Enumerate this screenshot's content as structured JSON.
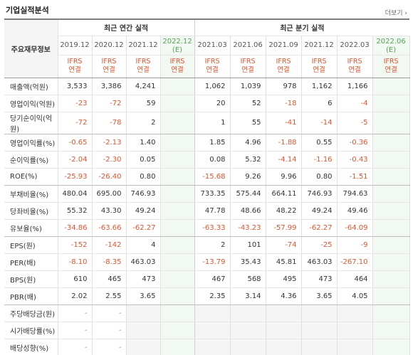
{
  "title": "기업실적분석",
  "more_label": "더보기",
  "annual_header": "최근 연간 실적",
  "quarter_header": "최근 분기 실적",
  "row_header": "주요재무정보",
  "ifrs_top": "IFRS",
  "ifrs_bottom": "연결",
  "annual_periods": [
    {
      "date": "2019.12",
      "est": ""
    },
    {
      "date": "2020.12",
      "est": ""
    },
    {
      "date": "2021.12",
      "est": ""
    },
    {
      "date": "2022.12",
      "est": "(E)"
    }
  ],
  "quarter_periods": [
    {
      "date": "2021.03",
      "est": ""
    },
    {
      "date": "2021.06",
      "est": ""
    },
    {
      "date": "2021.09",
      "est": ""
    },
    {
      "date": "2021.12",
      "est": ""
    },
    {
      "date": "2022.03",
      "est": ""
    },
    {
      "date": "2022.06",
      "est": "(E)"
    }
  ],
  "rows": [
    {
      "label": "매출액(억원)",
      "annual": [
        "3,533",
        "3,386",
        "4,241",
        ""
      ],
      "quarter": [
        "1,062",
        "1,039",
        "978",
        "1,162",
        "1,166",
        ""
      ]
    },
    {
      "label": "영업이익(억원)",
      "annual": [
        "-23",
        "-72",
        "59",
        ""
      ],
      "quarter": [
        "20",
        "52",
        "-18",
        "6",
        "-4",
        ""
      ]
    },
    {
      "label": "당기순이익(억원)",
      "annual": [
        "-72",
        "-78",
        "2",
        ""
      ],
      "quarter": [
        "1",
        "55",
        "-41",
        "-14",
        "-5",
        ""
      ]
    },
    {
      "label": "영업이익률(%)",
      "annual": [
        "-0.65",
        "-2.13",
        "1.40",
        ""
      ],
      "quarter": [
        "1.85",
        "4.96",
        "-1.88",
        "0.55",
        "-0.36",
        ""
      ]
    },
    {
      "label": "순이익률(%)",
      "annual": [
        "-2.04",
        "-2.30",
        "0.05",
        ""
      ],
      "quarter": [
        "0.08",
        "5.32",
        "-4.14",
        "-1.16",
        "-0.43",
        ""
      ]
    },
    {
      "label": "ROE(%)",
      "annual": [
        "-25.93",
        "-26.40",
        "0.80",
        ""
      ],
      "quarter": [
        "-15.68",
        "9.26",
        "9.96",
        "0.80",
        "-1.51",
        ""
      ]
    },
    {
      "label": "부채비율(%)",
      "annual": [
        "480.04",
        "695.00",
        "746.93",
        ""
      ],
      "quarter": [
        "733.35",
        "575.44",
        "664.11",
        "746.93",
        "794.63",
        ""
      ]
    },
    {
      "label": "당좌비율(%)",
      "annual": [
        "55.32",
        "43.30",
        "49.24",
        ""
      ],
      "quarter": [
        "47.78",
        "48.66",
        "48.22",
        "49.24",
        "49.46",
        ""
      ]
    },
    {
      "label": "유보율(%)",
      "annual": [
        "-34.86",
        "-63.66",
        "-62.27",
        ""
      ],
      "quarter": [
        "-63.33",
        "-43.23",
        "-57.99",
        "-62.27",
        "-64.09",
        ""
      ]
    },
    {
      "label": "EPS(원)",
      "annual": [
        "-152",
        "-142",
        "4",
        ""
      ],
      "quarter": [
        "2",
        "101",
        "-74",
        "-25",
        "-9",
        ""
      ]
    },
    {
      "label": "PER(배)",
      "annual": [
        "-8.10",
        "-8.35",
        "463.03",
        ""
      ],
      "quarter": [
        "-13.79",
        "35.43",
        "45.81",
        "463.03",
        "-267.10",
        ""
      ]
    },
    {
      "label": "BPS(원)",
      "annual": [
        "610",
        "465",
        "473",
        ""
      ],
      "quarter": [
        "467",
        "568",
        "495",
        "473",
        "464",
        ""
      ]
    },
    {
      "label": "PBR(배)",
      "annual": [
        "2.02",
        "2.55",
        "3.65",
        ""
      ],
      "quarter": [
        "2.35",
        "3.14",
        "4.36",
        "3.65",
        "4.05",
        ""
      ]
    },
    {
      "label": "주당배당금(원)",
      "annual": [
        "-",
        "-",
        "",
        ""
      ],
      "quarter": [
        "",
        "",
        "",
        "",
        "",
        ""
      ]
    },
    {
      "label": "시가배당률(%)",
      "annual": [
        "-",
        "-",
        "",
        ""
      ],
      "quarter": [
        "",
        "",
        "",
        "",
        "",
        ""
      ]
    },
    {
      "label": "배당성향(%)",
      "annual": [
        "-",
        "-",
        "",
        ""
      ],
      "quarter": [
        "",
        "",
        "",
        "",
        "",
        ""
      ]
    }
  ],
  "colors": {
    "negative": "#e0542e",
    "estimate_bg": "#f2f8f2",
    "estimate_text": "#58a058",
    "header_border": "#7d7d7d"
  }
}
